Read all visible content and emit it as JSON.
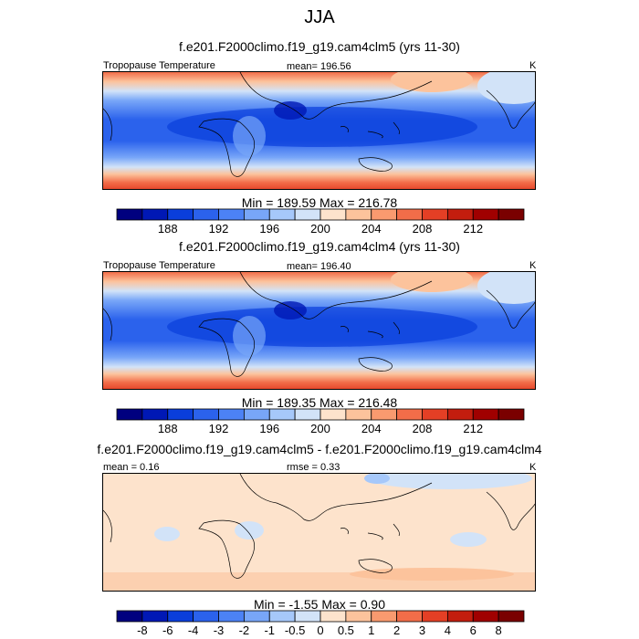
{
  "title": "JJA",
  "panels": [
    {
      "subtitle": "f.e201.F2000climo.f19_g19.cam4clm5 (yrs 11-30)",
      "left_label": "Tropopause Temperature",
      "center_label": "mean= 196.56",
      "right_label": "K",
      "minmax": "Min = 189.59 Max = 216.78",
      "colorbar": {
        "colors": [
          "#00007f",
          "#0018b5",
          "#0a3edb",
          "#2b62ec",
          "#4c82f5",
          "#78a6f8",
          "#a6c8fa",
          "#d2e3f8",
          "#fde3cc",
          "#fcc39c",
          "#f99a6f",
          "#f26d49",
          "#e43f25",
          "#c31d0e",
          "#a00000",
          "#7a0000"
        ],
        "labels": [
          "188",
          "192",
          "196",
          "200",
          "204",
          "208",
          "212"
        ]
      }
    },
    {
      "subtitle": "f.e201.F2000climo.f19_g19.cam4clm4 (yrs 11-30)",
      "left_label": "Tropopause Temperature",
      "center_label": "mean= 196.40",
      "right_label": "K",
      "minmax": "Min = 189.35 Max = 216.48",
      "colorbar": {
        "colors": [
          "#00007f",
          "#0018b5",
          "#0a3edb",
          "#2b62ec",
          "#4c82f5",
          "#78a6f8",
          "#a6c8fa",
          "#d2e3f8",
          "#fde3cc",
          "#fcc39c",
          "#f99a6f",
          "#f26d49",
          "#e43f25",
          "#c31d0e",
          "#a00000",
          "#7a0000"
        ],
        "labels": [
          "188",
          "192",
          "196",
          "200",
          "204",
          "208",
          "212"
        ]
      }
    },
    {
      "subtitle": "f.e201.F2000climo.f19_g19.cam4clm5 - f.e201.F2000climo.f19_g19.cam4clm4",
      "left_label": "mean =   0.16",
      "center_label": "rmse =   0.33",
      "right_label": "K",
      "minmax": "Min =  -1.55 Max =   0.90",
      "colorbar": {
        "colors": [
          "#00007f",
          "#0018b5",
          "#0a3edb",
          "#2b62ec",
          "#4c82f5",
          "#78a6f8",
          "#a6c8fa",
          "#d2e3f8",
          "#fde3cc",
          "#fcc39c",
          "#f99a6f",
          "#f26d49",
          "#e43f25",
          "#c31d0e",
          "#a00000",
          "#7a0000"
        ],
        "labels": [
          "-8",
          "-6",
          "-4",
          "-3",
          "-2",
          "-1",
          "-0.5",
          "0",
          "0.5",
          "1",
          "2",
          "3",
          "4",
          "6",
          "8"
        ]
      }
    }
  ]
}
